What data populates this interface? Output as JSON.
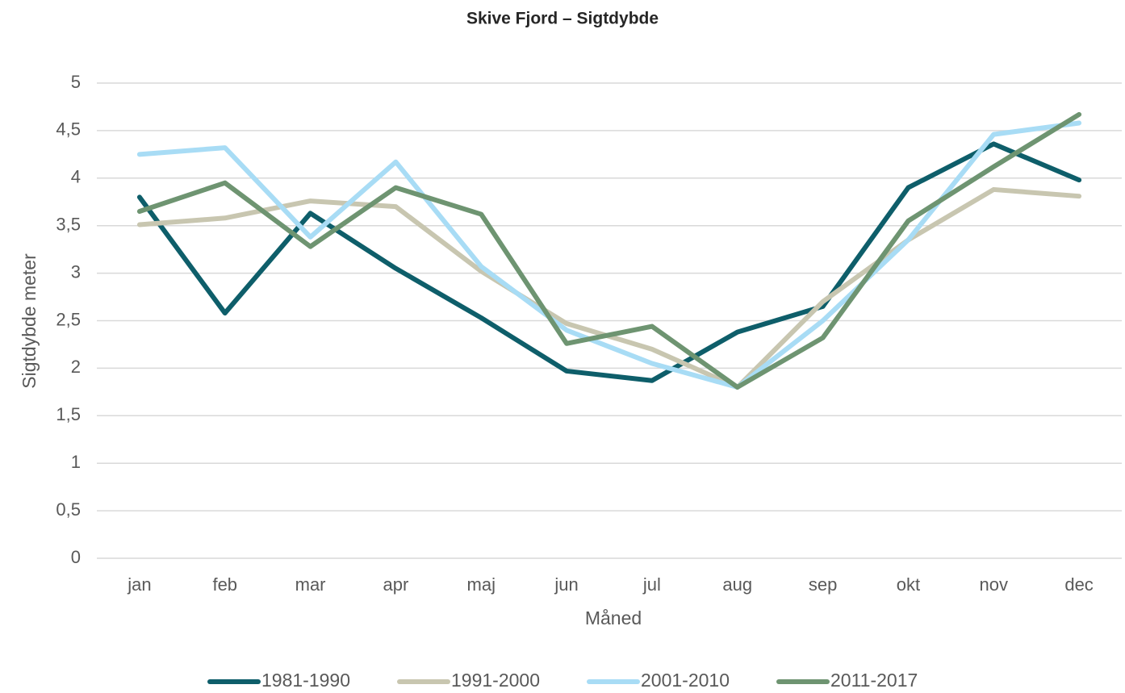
{
  "chart_data": {
    "type": "line",
    "title": "Skive Fjord – Sigtdybde",
    "x_label": "Måned",
    "y_label": "Sigtdybde meter",
    "categories": [
      "jan",
      "feb",
      "mar",
      "apr",
      "maj",
      "jun",
      "jul",
      "aug",
      "sep",
      "okt",
      "nov",
      "dec"
    ],
    "series": [
      {
        "name": "1981-1990",
        "color": "#0e5e6a",
        "values": [
          3.8,
          2.58,
          3.63,
          3.05,
          2.53,
          1.97,
          1.87,
          2.38,
          2.65,
          3.9,
          4.36,
          3.98
        ]
      },
      {
        "name": "1991-2000",
        "color": "#c8c6b0",
        "values": [
          3.51,
          3.58,
          3.76,
          3.7,
          3.02,
          2.47,
          2.2,
          1.8,
          2.7,
          3.35,
          3.88,
          3.81
        ]
      },
      {
        "name": "2001-2010",
        "color": "#a8dcf5",
        "values": [
          4.25,
          4.32,
          3.38,
          4.17,
          3.07,
          2.4,
          2.05,
          1.8,
          2.5,
          3.35,
          4.46,
          4.58
        ]
      },
      {
        "name": "2011-2017",
        "color": "#6e9471",
        "values": [
          3.65,
          3.95,
          3.28,
          3.9,
          3.62,
          2.26,
          2.44,
          1.8,
          2.32,
          3.55,
          4.12,
          4.67
        ]
      }
    ],
    "ylim": [
      0,
      5
    ],
    "yticks": [
      0,
      {
        "value": 0.5,
        "label": "0,5"
      },
      1,
      {
        "value": 1.5,
        "label": "1,5"
      },
      2,
      {
        "value": 2.5,
        "label": "2,5"
      },
      3,
      {
        "value": 3.5,
        "label": "3,5"
      },
      4,
      {
        "value": 4.5,
        "label": "4,5"
      },
      5
    ],
    "grid": true,
    "legend": "bottom"
  }
}
